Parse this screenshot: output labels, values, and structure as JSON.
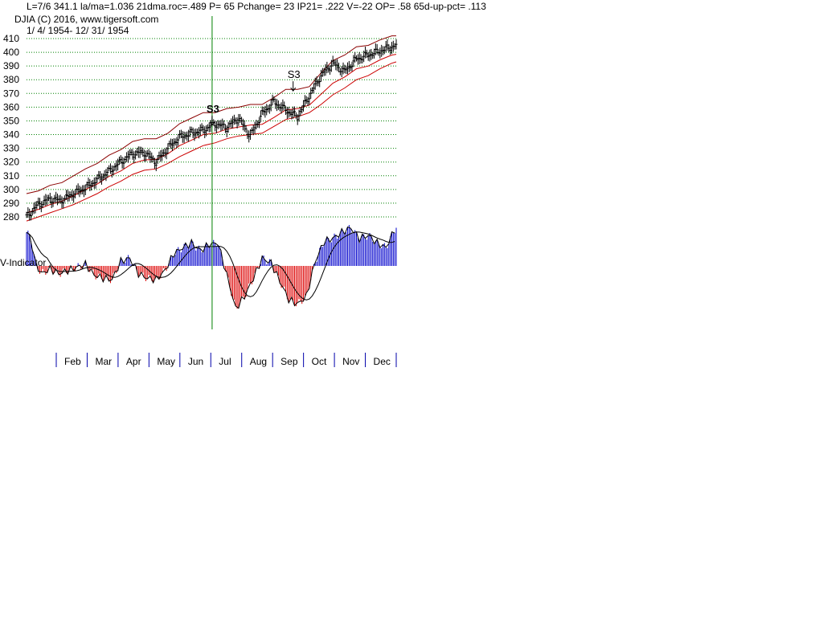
{
  "header": {
    "line1": "L=7/6  341.1  la/ma=1.036 21dma.roc=.489 P=  65 Pchange=  23 IP21= .222 V=-22 OP= .58 65d-up-pct= .113",
    "line2": "DJIA   (C) 2016, www.tigersoft.com",
    "line3": "1/ 4/ 1954- 12/ 31/ 1954"
  },
  "colors": {
    "grid": "#008000",
    "price": "#000000",
    "upper_band": "#8b0000",
    "lower_band": "#cc0000",
    "indicator_pos": "#0000cc",
    "indicator_neg": "#dd0000",
    "cursor": "#008000",
    "month_tick": "#0000aa"
  },
  "chart_data": {
    "type": "line",
    "series": [
      {
        "name": "DJIA",
        "x": [
          0,
          8,
          16,
          24,
          32,
          40,
          48,
          56,
          64,
          72,
          80,
          88,
          96,
          104,
          112,
          120,
          128,
          136,
          144,
          152,
          160,
          168,
          176,
          184,
          192,
          200,
          208,
          216,
          224,
          232,
          240,
          248,
          251
        ],
        "values": [
          280,
          289,
          293,
          292,
          297,
          301,
          307,
          313,
          320,
          326,
          327,
          320,
          330,
          338,
          341,
          343,
          348,
          345,
          352,
          339,
          355,
          364,
          358,
          353,
          368,
          383,
          392,
          386,
          395,
          398,
          401,
          404,
          405
        ]
      },
      {
        "name": "",
        "x": [
          0,
          8,
          16,
          24,
          32,
          40,
          48,
          56,
          64,
          72,
          80,
          88,
          96,
          104,
          112,
          120,
          128,
          136,
          144,
          152,
          160,
          168,
          176,
          184,
          192,
          200,
          208,
          216,
          224,
          232,
          240,
          248,
          251
        ],
        "values": [
          297,
          299,
          303,
          305,
          310,
          315,
          319,
          325,
          329,
          335,
          337,
          337,
          341,
          348,
          352,
          356,
          356,
          359,
          360,
          362,
          362,
          367,
          373,
          373,
          375,
          385,
          394,
          398,
          404,
          405,
          409,
          412,
          412
        ]
      },
      {
        "name": "",
        "x": [
          0,
          8,
          16,
          24,
          32,
          40,
          48,
          56,
          64,
          72,
          80,
          88,
          96,
          104,
          112,
          120,
          128,
          136,
          144,
          152,
          160,
          168,
          176,
          184,
          192,
          200,
          208,
          216,
          224,
          232,
          240,
          248,
          251
        ],
        "values": [
          277,
          280,
          283,
          286,
          289,
          293,
          297,
          302,
          306,
          311,
          314,
          315,
          319,
          324,
          328,
          332,
          334,
          337,
          339,
          340,
          341,
          346,
          351,
          353,
          356,
          362,
          369,
          374,
          380,
          383,
          388,
          392,
          393
        ]
      }
    ],
    "indicator": {
      "name": "V-Indicator",
      "x": [
        0,
        3,
        6,
        10,
        16,
        22,
        28,
        34,
        40,
        46,
        52,
        58,
        64,
        70,
        76,
        82,
        88,
        94,
        100,
        106,
        112,
        118,
        124,
        130,
        136,
        142,
        148,
        154,
        160,
        166,
        172,
        178,
        184,
        190,
        196,
        202,
        208,
        214,
        220,
        226,
        232,
        238,
        244,
        251
      ],
      "values": [
        22,
        18,
        2,
        -5,
        -2,
        -5,
        -3,
        -1,
        1,
        -6,
        -8,
        -9,
        3,
        5,
        -5,
        -8,
        -9,
        -3,
        8,
        12,
        15,
        10,
        14,
        15,
        -6,
        -28,
        -20,
        -8,
        5,
        2,
        -10,
        -22,
        -25,
        -20,
        3,
        16,
        18,
        22,
        25,
        18,
        20,
        15,
        12,
        26
      ]
    },
    "y_axis": {
      "min": 280,
      "max": 410,
      "ticks": [
        410,
        400,
        390,
        380,
        370,
        360,
        350,
        340,
        330,
        320,
        310,
        300,
        290,
        280
      ]
    },
    "months": [
      "Feb",
      "Mar",
      "Apr",
      "May",
      "Jun",
      "Jul",
      "Aug",
      "Sep",
      "Oct",
      "Nov",
      "Dec"
    ],
    "annotations": [
      {
        "label": "S3",
        "x": 126,
        "y": 341
      },
      {
        "label": "S3",
        "x": 181,
        "y": 366
      }
    ],
    "cursor_x": 126,
    "grid": true
  }
}
